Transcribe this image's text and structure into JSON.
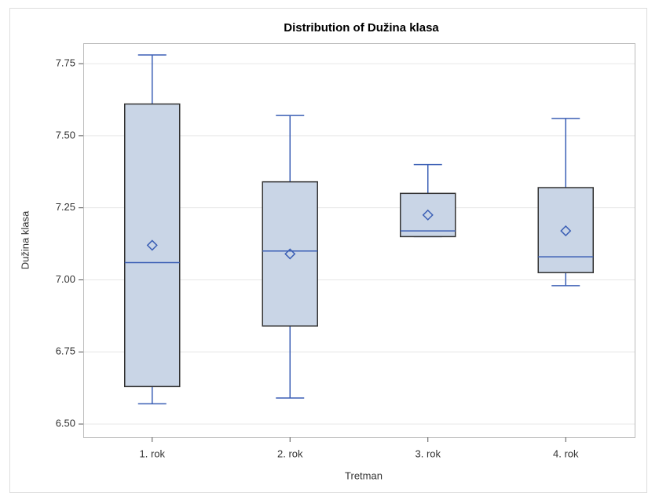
{
  "chart_data": {
    "type": "box",
    "title": "Distribution of Dužina klasa",
    "x_label": "Tretman",
    "y_label": "Dužina klasa",
    "categories": [
      "1. rok",
      "2. rok",
      "3. rok",
      "4. rok"
    ],
    "min": [
      6.57,
      6.59,
      7.15,
      6.98
    ],
    "q1": [
      6.63,
      6.84,
      7.15,
      7.025
    ],
    "median": [
      7.06,
      7.1,
      7.17,
      7.08
    ],
    "q3": [
      7.61,
      7.34,
      7.3,
      7.32
    ],
    "max": [
      7.78,
      7.57,
      7.4,
      7.56
    ],
    "mean": [
      7.12,
      7.09,
      7.225,
      7.17
    ],
    "box_color": "#c9d5e6",
    "line_color": "#3b5fb5",
    "ylim": [
      6.454,
      7.821
    ],
    "yticks": [
      {
        "value": 6.5,
        "label": "6.50"
      },
      6.75,
      {
        "value": 7,
        "label": "7.00"
      },
      7.25,
      {
        "value": 7.5,
        "label": "7.50"
      },
      7.75
    ],
    "grid": true
  }
}
